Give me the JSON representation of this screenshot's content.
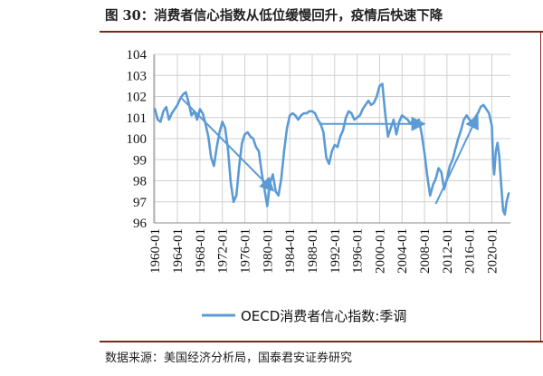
{
  "title": "图 30：消费者信心指数从低位缓慢回升，疫情后快速下降",
  "source": "数据来源：美国经济分析局，国泰君安证券研究",
  "colors": {
    "series": "#5b9bd5",
    "frame": "#7a2a1a",
    "grid": "#d0d0d0"
  },
  "chart_data": {
    "type": "line",
    "title": "",
    "xlabel": "",
    "ylabel": "",
    "ylim": [
      96,
      104
    ],
    "yticks": [
      "96",
      "97",
      "98",
      "99",
      "100",
      "101",
      "102",
      "103",
      "104"
    ],
    "xticks": [
      "1960-01",
      "1964-01",
      "1968-01",
      "1972-01",
      "1976-01",
      "1980-01",
      "1984-01",
      "1988-01",
      "1992-01",
      "1996-01",
      "2000-01",
      "2004-01",
      "2008-01",
      "2012-01",
      "2016-01",
      "2020-01"
    ],
    "grid": true,
    "legend": "bottom",
    "series": [
      {
        "name": "OECD消费者信心指数:季调",
        "x": [
          1960.0,
          1960.5,
          1961.0,
          1961.5,
          1962.0,
          1962.5,
          1963.0,
          1963.5,
          1964.0,
          1964.5,
          1965.0,
          1965.5,
          1966.0,
          1966.5,
          1967.0,
          1967.5,
          1968.0,
          1968.5,
          1969.0,
          1969.5,
          1970.0,
          1970.5,
          1971.0,
          1971.5,
          1972.0,
          1972.5,
          1973.0,
          1973.5,
          1974.0,
          1974.5,
          1975.0,
          1975.5,
          1976.0,
          1976.5,
          1977.0,
          1977.5,
          1978.0,
          1978.5,
          1979.0,
          1979.5,
          1980.0,
          1980.5,
          1981.0,
          1981.5,
          1982.0,
          1982.5,
          1983.0,
          1983.5,
          1984.0,
          1984.5,
          1985.0,
          1985.5,
          1986.0,
          1986.5,
          1987.0,
          1987.5,
          1988.0,
          1988.5,
          1989.0,
          1989.5,
          1990.0,
          1990.5,
          1991.0,
          1991.5,
          1992.0,
          1992.5,
          1993.0,
          1993.5,
          1994.0,
          1994.5,
          1995.0,
          1995.5,
          1996.0,
          1996.5,
          1997.0,
          1997.5,
          1998.0,
          1998.5,
          1999.0,
          1999.5,
          2000.0,
          2000.5,
          2001.0,
          2001.5,
          2002.0,
          2002.5,
          2003.0,
          2003.5,
          2004.0,
          2004.5,
          2005.0,
          2005.5,
          2006.0,
          2006.5,
          2007.0,
          2007.5,
          2008.0,
          2008.5,
          2009.0,
          2009.5,
          2010.0,
          2010.5,
          2011.0,
          2011.5,
          2012.0,
          2012.5,
          2013.0,
          2013.5,
          2014.0,
          2014.5,
          2015.0,
          2015.5,
          2016.0,
          2016.5,
          2017.0,
          2017.5,
          2018.0,
          2018.5,
          2019.0,
          2019.5,
          2020.0,
          2020.2,
          2020.4,
          2020.7,
          2021.0,
          2021.3,
          2021.6,
          2022.0,
          2022.3,
          2022.6,
          2023.0
        ],
        "values": [
          101.4,
          100.9,
          100.8,
          101.3,
          101.5,
          100.9,
          101.2,
          101.4,
          101.6,
          101.9,
          102.1,
          102.2,
          101.7,
          101.1,
          101.3,
          100.9,
          101.4,
          101.2,
          100.7,
          100.1,
          99.1,
          98.7,
          99.6,
          100.3,
          100.8,
          100.5,
          99.5,
          97.9,
          97.0,
          97.3,
          98.7,
          99.8,
          100.2,
          100.3,
          100.1,
          100.0,
          99.6,
          99.4,
          98.4,
          97.6,
          96.8,
          97.9,
          98.3,
          97.5,
          97.3,
          98.1,
          99.4,
          100.5,
          101.1,
          101.2,
          101.1,
          100.9,
          101.1,
          101.2,
          101.2,
          101.3,
          101.3,
          101.2,
          100.9,
          100.7,
          100.3,
          99.1,
          98.8,
          99.4,
          99.7,
          99.6,
          100.1,
          100.4,
          101.0,
          101.3,
          101.2,
          100.9,
          101.0,
          101.1,
          101.4,
          101.6,
          101.8,
          101.6,
          101.7,
          102.0,
          102.5,
          102.6,
          101.2,
          100.1,
          100.5,
          100.9,
          100.2,
          100.8,
          101.1,
          101.0,
          100.9,
          100.7,
          100.9,
          100.8,
          100.9,
          100.2,
          99.3,
          98.2,
          97.3,
          97.8,
          98.1,
          98.6,
          98.4,
          97.6,
          98.1,
          98.7,
          99.0,
          99.5,
          100.0,
          100.4,
          100.9,
          101.1,
          100.9,
          100.8,
          101.0,
          101.2,
          101.5,
          101.6,
          101.4,
          101.2,
          100.6,
          99.0,
          98.3,
          99.4,
          99.8,
          99.2,
          98.0,
          96.6,
          96.4,
          97.0,
          97.4
        ]
      }
    ],
    "annotations": {
      "arrows": [
        {
          "from": [
            1964.8,
            101.9
          ],
          "to": [
            1980.8,
            97.6
          ]
        },
        {
          "from": [
            1989.2,
            100.7
          ],
          "to": [
            2007.6,
            100.7
          ]
        },
        {
          "from": [
            2010.0,
            96.9
          ],
          "to": [
            2017.3,
            101.0
          ]
        }
      ]
    }
  }
}
